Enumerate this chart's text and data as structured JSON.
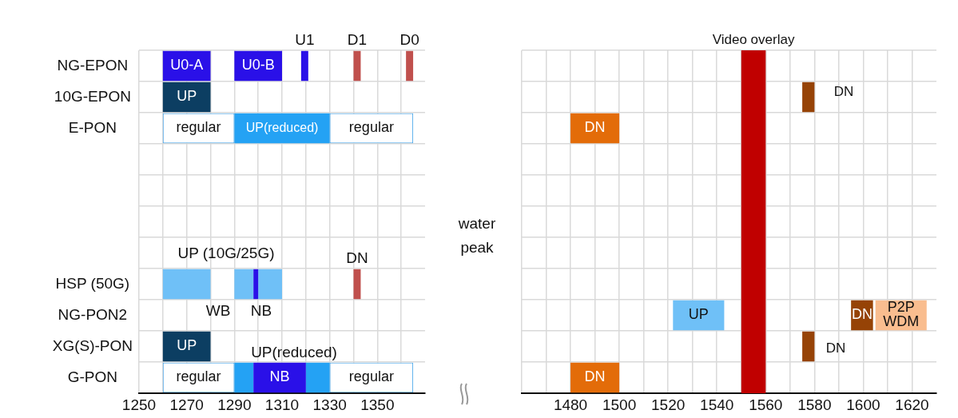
{
  "chart_data": [
    {
      "type": "bar",
      "orientation": "horizontal",
      "grid": true,
      "legend": false,
      "categories": [
        "NG-EPON",
        "10G-EPON",
        "E-PON",
        null,
        null,
        null,
        null,
        "HSP (50G)",
        "NG-PON2",
        "XG(S)-PON",
        "G-PON"
      ],
      "xlim": [
        1250,
        1370
      ],
      "xticks": [
        1250,
        {
          "value": 1260,
          "label": null
        },
        1270,
        {
          "value": 1280,
          "label": null
        },
        1290,
        {
          "value": 1300,
          "label": null
        },
        1310,
        {
          "value": 1320,
          "label": null
        },
        1330,
        {
          "value": 1340,
          "label": null
        },
        1350,
        {
          "value": 1360,
          "label": null
        }
      ],
      "series": [
        {
          "color": "#2a10e8",
          "values": [
            20,
            null,
            null,
            null,
            null,
            null,
            null,
            2,
            null,
            null,
            22
          ],
          "base": [
            1260,
            null,
            null,
            null,
            null,
            null,
            null,
            1298,
            null,
            null,
            1298
          ],
          "value_labels": [
            "U0-A",
            null,
            null,
            null,
            null,
            null,
            null,
            null,
            null,
            null,
            "NB"
          ]
        },
        {
          "color": "#2a10e8",
          "values": [
            20,
            null,
            null,
            null,
            null,
            null,
            null,
            null,
            null,
            null,
            null
          ],
          "base": [
            1290,
            null,
            null,
            null,
            null,
            null,
            null,
            null,
            null,
            null,
            null
          ],
          "value_labels": [
            "U0-B",
            null,
            null,
            null,
            null,
            null,
            null,
            null,
            null,
            null,
            null
          ]
        },
        {
          "color": "#2a10e8",
          "values": [
            3,
            null,
            null,
            null,
            null,
            null,
            null,
            null,
            null,
            null,
            null
          ],
          "base": [
            1318,
            null,
            null,
            null,
            null,
            null,
            null,
            null,
            null,
            null,
            null
          ]
        },
        {
          "color": "#c0504d",
          "values": [
            3,
            null,
            null,
            null,
            null,
            null,
            null,
            3,
            null,
            null,
            null
          ],
          "base": [
            1340,
            null,
            null,
            null,
            null,
            null,
            null,
            1340,
            null,
            null,
            null
          ]
        },
        {
          "color": "#c0504d",
          "values": [
            3,
            null,
            null,
            null,
            null,
            null,
            null,
            null,
            null,
            null,
            null
          ],
          "base": [
            1362,
            null,
            null,
            null,
            null,
            null,
            null,
            null,
            null,
            null,
            null
          ]
        },
        {
          "color": "#0c3e62",
          "values": [
            null,
            20,
            null,
            null,
            null,
            null,
            null,
            null,
            null,
            20,
            null
          ],
          "base": [
            null,
            1260,
            null,
            null,
            null,
            null,
            null,
            null,
            null,
            1260,
            null
          ],
          "value_labels": [
            null,
            "UP",
            null,
            null,
            null,
            null,
            null,
            null,
            null,
            "UP",
            null
          ]
        },
        {
          "color": "#ffffff",
          "values": [
            null,
            null,
            30,
            null,
            null,
            null,
            null,
            null,
            null,
            null,
            30
          ],
          "base": [
            null,
            null,
            1260,
            null,
            null,
            null,
            null,
            null,
            null,
            null,
            1260
          ],
          "value_labels": [
            null,
            null,
            "regular",
            null,
            null,
            null,
            null,
            null,
            null,
            null,
            "regular"
          ]
        },
        {
          "color": "#ffffff",
          "values": [
            null,
            null,
            35,
            null,
            null,
            null,
            null,
            null,
            null,
            null,
            35
          ],
          "base": [
            null,
            null,
            1330,
            null,
            null,
            null,
            null,
            null,
            null,
            null,
            1330
          ],
          "value_labels": [
            null,
            null,
            "regular",
            null,
            null,
            null,
            null,
            null,
            null,
            null,
            "regular"
          ]
        },
        {
          "color": "#24a2f4",
          "values": [
            null,
            null,
            40,
            null,
            null,
            null,
            null,
            null,
            null,
            null,
            8
          ],
          "base": [
            null,
            null,
            1290,
            null,
            null,
            null,
            null,
            null,
            null,
            null,
            1290
          ],
          "value_labels": [
            null,
            null,
            "UP(reduced)",
            null,
            null,
            null,
            null,
            null,
            null,
            null,
            null
          ]
        },
        {
          "color": "#24a2f4",
          "values": [
            null,
            null,
            null,
            null,
            null,
            null,
            null,
            null,
            null,
            null,
            10
          ],
          "base": [
            null,
            null,
            null,
            null,
            null,
            null,
            null,
            null,
            null,
            null,
            1320
          ]
        },
        {
          "color": "#6fc0f7",
          "values": [
            null,
            null,
            null,
            null,
            null,
            null,
            null,
            20,
            null,
            null,
            null
          ],
          "base": [
            null,
            null,
            null,
            null,
            null,
            null,
            null,
            1260,
            null,
            null,
            null
          ]
        },
        {
          "color": "#6fc0f7",
          "values": [
            null,
            null,
            null,
            null,
            null,
            null,
            null,
            8,
            null,
            null,
            null
          ],
          "base": [
            null,
            null,
            null,
            null,
            null,
            null,
            null,
            1290,
            null,
            null,
            null
          ]
        },
        {
          "color": "#6fc0f7",
          "values": [
            null,
            null,
            null,
            null,
            null,
            null,
            null,
            10,
            null,
            null,
            null
          ],
          "base": [
            null,
            null,
            null,
            null,
            null,
            null,
            null,
            1300,
            null,
            null,
            null
          ]
        }
      ],
      "annotations": [
        {
          "text": "U1",
          "x": 1319.5,
          "y": "NG-EPON"
        },
        {
          "text": "D1",
          "x": 1341.5,
          "y": "NG-EPON"
        },
        {
          "text": "D0",
          "x": 1363.5,
          "y": "NG-EPON"
        },
        "UP (10G/25G)",
        {
          "text": "DN",
          "x": 1341.5,
          "y": "HSP (50G)"
        },
        "WB",
        "NB",
        "UP(reduced)",
        "water peak"
      ]
    },
    {
      "type": "bar",
      "orientation": "horizontal",
      "grid": true,
      "legend": false,
      "tick_labels": "x",
      "categories": [
        null,
        null,
        null,
        null,
        null,
        null,
        null,
        null,
        null,
        null,
        null
      ],
      "xlim": [
        1460,
        1630
      ],
      "xticks": [
        {
          "value": 1460,
          "label": null
        },
        {
          "value": 1470,
          "label": null
        },
        1480,
        {
          "value": 1490,
          "label": null
        },
        1500,
        {
          "value": 1510,
          "label": null
        },
        1520,
        {
          "value": 1530,
          "label": null
        },
        1540,
        {
          "value": 1550,
          "label": null
        },
        1560,
        {
          "value": 1570,
          "label": null
        },
        1580,
        {
          "value": 1590,
          "label": null
        },
        1600,
        {
          "value": 1610,
          "label": null
        },
        1620
      ],
      "series": [
        {
          "color": "#e36c09",
          "values": [
            null,
            null,
            20,
            null,
            null,
            null,
            null,
            null,
            null,
            null,
            20
          ],
          "base": [
            null,
            null,
            1480,
            null,
            null,
            null,
            null,
            null,
            null,
            null,
            1480
          ],
          "value_labels": [
            null,
            null,
            "DN",
            null,
            null,
            null,
            null,
            null,
            null,
            null,
            "DN"
          ]
        },
        {
          "color": "#964306",
          "values": [
            null,
            5,
            null,
            null,
            null,
            null,
            null,
            null,
            9,
            5,
            null
          ],
          "base": [
            null,
            1575,
            null,
            null,
            null,
            null,
            null,
            null,
            1595,
            1575,
            null
          ],
          "value_labels": [
            null,
            null,
            null,
            null,
            null,
            null,
            null,
            null,
            "DN",
            null,
            null
          ]
        },
        {
          "color": "#6fc0f7",
          "values": [
            null,
            null,
            null,
            null,
            null,
            null,
            null,
            null,
            21,
            null,
            null
          ],
          "base": [
            null,
            null,
            null,
            null,
            null,
            null,
            null,
            null,
            1522,
            null,
            null
          ],
          "value_labels": [
            null,
            null,
            null,
            null,
            null,
            null,
            null,
            null,
            "UP",
            null,
            null
          ]
        },
        {
          "color": "#f9bd8f",
          "values": [
            null,
            null,
            null,
            null,
            null,
            null,
            null,
            null,
            21,
            null,
            null
          ],
          "base": [
            null,
            null,
            null,
            null,
            null,
            null,
            null,
            null,
            1605,
            null,
            null
          ],
          "value_labels": [
            null,
            null,
            null,
            null,
            null,
            null,
            null,
            null,
            "P2P WDM",
            null,
            null
          ]
        }
      ],
      "bands": [
        {
          "axis": "x",
          "from": 1550,
          "to": 1560,
          "label": "Video overlay",
          "color": "#c00000"
        }
      ],
      "annotations": [
        "DN",
        "DN"
      ]
    }
  ]
}
